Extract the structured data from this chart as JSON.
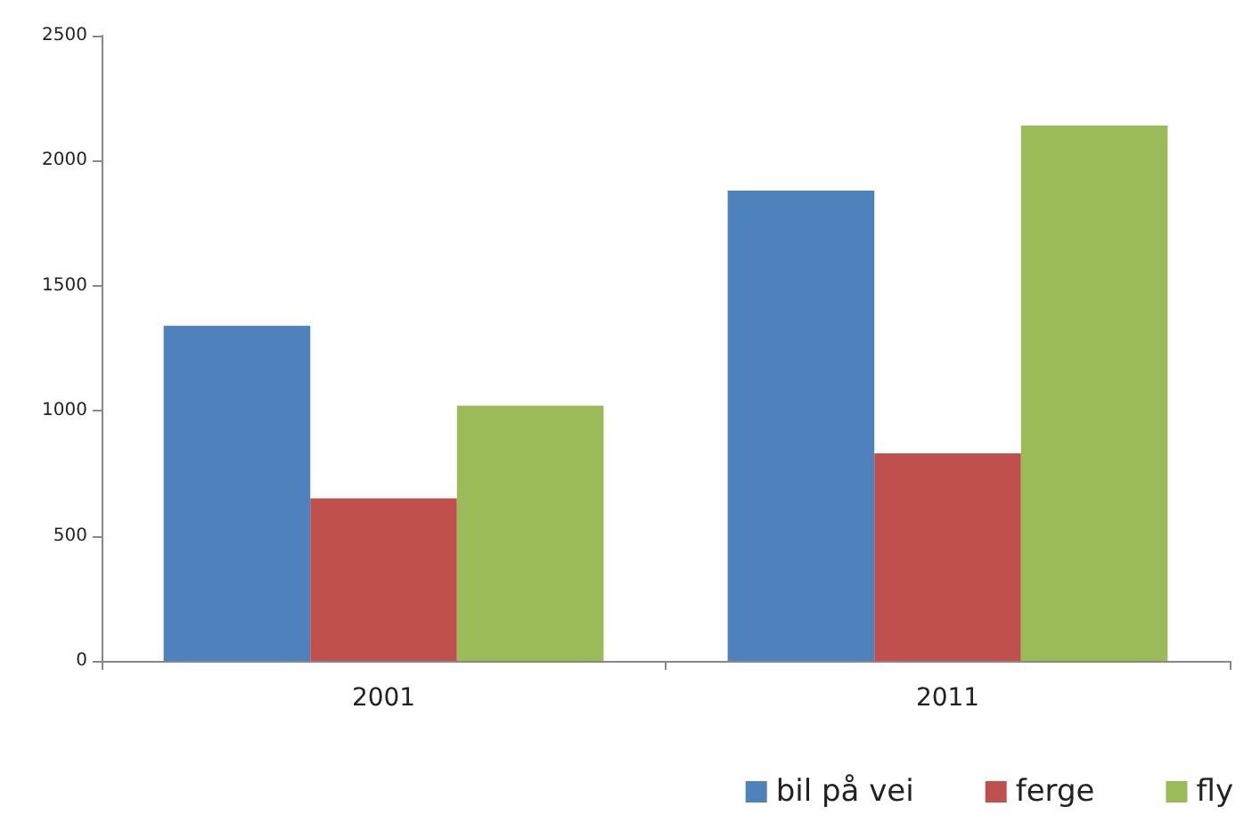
{
  "chart_data": {
    "type": "bar",
    "categories": [
      "2001",
      "2011"
    ],
    "series": [
      {
        "name": "bil på vei",
        "color": "#4f81bd",
        "values": [
          1340,
          1880
        ]
      },
      {
        "name": "ferge",
        "color": "#c0504d",
        "values": [
          650,
          830
        ]
      },
      {
        "name": "fly",
        "color": "#9bbb59",
        "values": [
          1020,
          2140
        ]
      }
    ],
    "ylim": [
      0,
      2500
    ],
    "yticks": [
      0,
      500,
      1000,
      1500,
      2000,
      2500
    ],
    "grid": false,
    "legend": "bottom right"
  }
}
